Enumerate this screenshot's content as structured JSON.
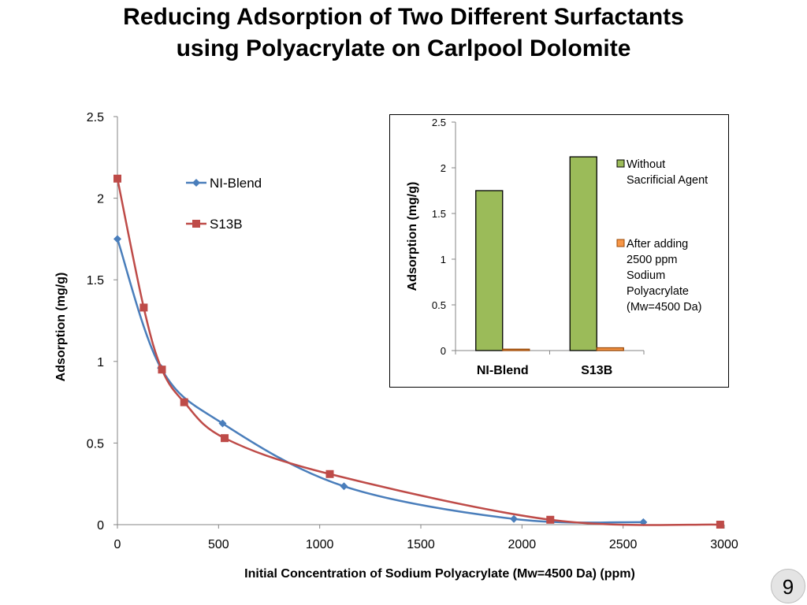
{
  "slide": {
    "title_line1": "Reducing Adsorption of Two Different Surfactants",
    "title_line2": "using Polyacrylate on Carlpool Dolomite",
    "page_number": "9"
  },
  "chart_data": [
    {
      "type": "line",
      "title": "",
      "xlabel": "Initial Concentration of Sodium Polyacrylate (Mw=4500 Da) (ppm)",
      "ylabel": "Adsorption (mg/g)",
      "xlim": [
        0,
        3000
      ],
      "ylim": [
        0,
        2.5
      ],
      "xticks": [
        0,
        500,
        1000,
        1500,
        2000,
        2500,
        3000
      ],
      "xtick_labels": [
        "0",
        "500",
        "1000",
        "1500",
        "2000",
        "2500",
        "3000"
      ],
      "yticks": [
        0,
        0.5,
        1,
        1.5,
        2,
        2.5
      ],
      "ytick_labels": [
        "0",
        "0.5",
        "1",
        "1.5",
        "2",
        "2.5"
      ],
      "grid": false,
      "legend_position": "top-left",
      "series": [
        {
          "name": "NI-Blend",
          "color": "#4a7ebb",
          "marker": "diamond",
          "x": [
            0,
            215,
            520,
            1120,
            1960,
            2600
          ],
          "y": [
            1.75,
            0.96,
            0.62,
            0.235,
            0.035,
            0.015
          ]
        },
        {
          "name": "S13B",
          "color": "#be4b48",
          "marker": "square",
          "x": [
            0,
            130,
            220,
            330,
            530,
            1050,
            2140,
            2980
          ],
          "y": [
            2.12,
            1.33,
            0.95,
            0.75,
            0.53,
            0.31,
            0.03,
            0.0
          ]
        }
      ]
    },
    {
      "type": "bar",
      "title": "",
      "xlabel": "",
      "ylabel": "Adsorption (mg/g)",
      "ylim": [
        0,
        2.5
      ],
      "yticks": [
        0,
        0.5,
        1,
        1.5,
        2,
        2.5
      ],
      "ytick_labels": [
        "0",
        "0.5",
        "1",
        "1.5",
        "2",
        "2.5"
      ],
      "grid": false,
      "legend_position": "right",
      "categories": [
        "NI-Blend",
        "S13B"
      ],
      "series": [
        {
          "name": "Without Sacrificial Agent",
          "legend_lines": [
            "Without",
            "Sacrificial Agent"
          ],
          "color": "#9bbb59",
          "edge_color": "#000000",
          "values": [
            1.75,
            2.12
          ]
        },
        {
          "name": "After adding 2500 ppm Sodium Polyacrylate (Mw=4500 Da)",
          "legend_lines": [
            "After adding",
            "2500 ppm",
            "Sodium",
            "Polyacrylate",
            "(Mw=4500 Da)"
          ],
          "color": "#f79646",
          "edge_color": "#984807",
          "values": [
            0.015,
            0.03
          ]
        }
      ]
    }
  ]
}
